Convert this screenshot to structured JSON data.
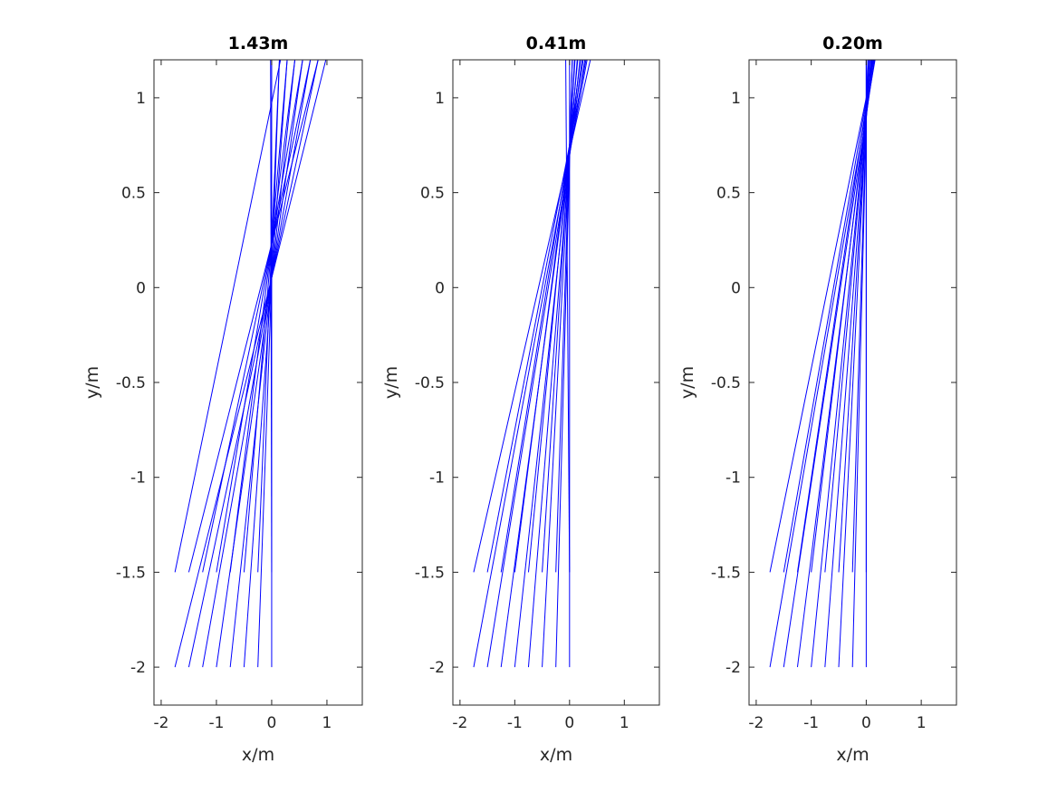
{
  "chart_data": [
    {
      "type": "line",
      "title": "1.43m",
      "xlabel": "x/m",
      "ylabel": "y/m",
      "xlim": [
        -2.13,
        1.64
      ],
      "ylim": [
        -2.2,
        1.2
      ],
      "xticks": [
        -2,
        -1,
        0,
        1
      ],
      "xtick_labels": [
        "-2",
        "-1",
        "0",
        "1"
      ],
      "yticks": [
        -2,
        -1.5,
        -1,
        -0.5,
        0,
        0.5,
        1
      ],
      "ytick_labels": [
        "-2",
        "-1.5",
        "-1",
        "-0.5",
        "0",
        "0.5",
        "1"
      ],
      "color": "#0000ff",
      "rays": [
        [
          -1.75,
          -2,
          0.98,
          1.2
        ],
        [
          -1.5,
          -2,
          0.84,
          1.2
        ],
        [
          -1.25,
          -2,
          0.7,
          1.2
        ],
        [
          -1,
          -2,
          0.56,
          1.2
        ],
        [
          -0.75,
          -2,
          0.42,
          1.2
        ],
        [
          -0.5,
          -2,
          0.28,
          1.2
        ],
        [
          -0.25,
          -2,
          0.14,
          1.2
        ],
        [
          0,
          -2,
          0,
          1.2
        ],
        [
          -1.75,
          -1.5,
          0.16,
          1.2
        ],
        [
          -1.5,
          -1.5,
          0.84,
          1.2
        ],
        [
          -1.25,
          -1.5,
          0.7,
          1.2
        ],
        [
          -1,
          -1.5,
          0.56,
          1.2
        ],
        [
          -0.75,
          -1.5,
          0.42,
          1.2
        ],
        [
          -0.5,
          -1.5,
          0.28,
          1.2
        ],
        [
          -0.25,
          -1.5,
          0.14,
          1.2
        ],
        [
          0,
          -1.5,
          -0.02,
          1.2
        ]
      ]
    },
    {
      "type": "line",
      "title": "0.41m",
      "xlabel": "x/m",
      "ylabel": "y/m",
      "xlim": [
        -2.13,
        1.64
      ],
      "ylim": [
        -2.2,
        1.2
      ],
      "xticks": [
        -2,
        -1,
        0,
        1
      ],
      "xtick_labels": [
        "-2",
        "-1",
        "0",
        "1"
      ],
      "yticks": [
        -2,
        -1.5,
        -1,
        -0.5,
        0,
        0.5,
        1
      ],
      "ytick_labels": [
        "-2",
        "-1.5",
        "-1",
        "-0.5",
        "0",
        "0.5",
        "1"
      ],
      "color": "#0000ff",
      "rays": [
        [
          -1.75,
          -2,
          0.32,
          1.2
        ],
        [
          -1.5,
          -2,
          0.28,
          1.2
        ],
        [
          -1.25,
          -2,
          0.23,
          1.2
        ],
        [
          -1,
          -2,
          0.19,
          1.2
        ],
        [
          -0.75,
          -2,
          0.14,
          1.2
        ],
        [
          -0.5,
          -2,
          0.09,
          1.2
        ],
        [
          -0.25,
          -2,
          0.05,
          1.2
        ],
        [
          0,
          -2,
          0,
          1.2
        ],
        [
          -1.75,
          -1.5,
          0.38,
          1.2
        ],
        [
          -1.5,
          -1.5,
          0.3,
          1.2
        ],
        [
          -1.25,
          -1.5,
          0.25,
          1.2
        ],
        [
          -1,
          -1.5,
          0.2,
          1.2
        ],
        [
          -0.75,
          -1.5,
          0.15,
          1.2
        ],
        [
          -0.5,
          -1.5,
          0.1,
          1.2
        ],
        [
          -0.25,
          -1.5,
          0.05,
          1.2
        ],
        [
          0,
          -1.5,
          -0.07,
          1.2
        ]
      ]
    },
    {
      "type": "line",
      "title": "0.20m",
      "xlabel": "x/m",
      "ylabel": "y/m",
      "xlim": [
        -2.13,
        1.64
      ],
      "ylim": [
        -2.2,
        1.2
      ],
      "xticks": [
        -2,
        -1,
        0,
        1
      ],
      "xtick_labels": [
        "-2",
        "-1",
        "0",
        "1"
      ],
      "yticks": [
        -2,
        -1.5,
        -1,
        -0.5,
        0,
        0.5,
        1
      ],
      "ytick_labels": [
        "-2",
        "-1.5",
        "-1",
        "-0.5",
        "0",
        "0.5",
        "1"
      ],
      "color": "#0000ff",
      "rays": [
        [
          -1.75,
          -2,
          0.16,
          1.2
        ],
        [
          -1.5,
          -2,
          0.15,
          1.2
        ],
        [
          -1.25,
          -2,
          0.13,
          1.2
        ],
        [
          -1,
          -2,
          0.1,
          1.2
        ],
        [
          -0.75,
          -2,
          0.08,
          1.2
        ],
        [
          -0.5,
          -2,
          0.05,
          1.2
        ],
        [
          -0.25,
          -2,
          0.03,
          1.2
        ],
        [
          0,
          -2,
          0,
          1.2
        ],
        [
          -1.75,
          -1.5,
          0.14,
          1.2
        ],
        [
          -1.5,
          -1.5,
          0.13,
          1.2
        ],
        [
          -1.25,
          -1.5,
          0.12,
          1.2
        ],
        [
          -1,
          -1.5,
          0.11,
          1.2
        ],
        [
          -0.75,
          -1.5,
          0.09,
          1.2
        ],
        [
          -0.5,
          -1.5,
          0.06,
          1.2
        ],
        [
          -0.25,
          -1.5,
          0.03,
          1.2
        ],
        [
          0,
          -1.5,
          0,
          1.2
        ]
      ]
    }
  ]
}
